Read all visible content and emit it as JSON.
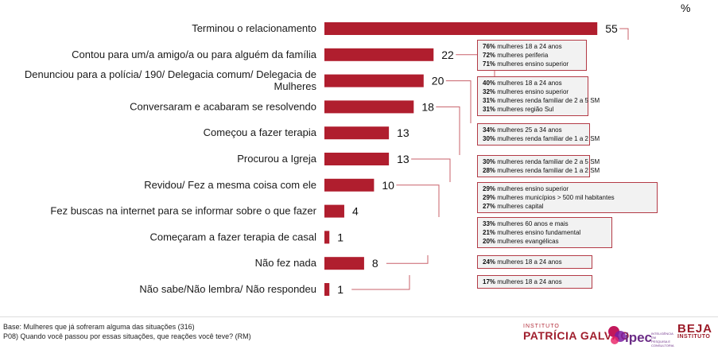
{
  "chart_data": {
    "type": "bar",
    "orientation": "horizontal",
    "unit_label": "%",
    "categories": [
      "Terminou o relacionamento",
      "Contou para um/a amigo/a ou para alguém da família",
      "Denunciou para a polícia/ 190/ Delegacia comum/ Delegacia de Mulheres",
      "Conversaram e acabaram se resolvendo",
      "Começou a fazer terapia",
      "Procurou a Igreja",
      "Revidou/ Fez a mesma coisa com ele",
      "Fez buscas na internet para se informar sobre o que fazer",
      "Começaram a fazer terapia de casal",
      "Não fez nada",
      "Não sabe/Não lembra/ Não respondeu"
    ],
    "category_lines": [
      [
        "Terminou o relacionamento"
      ],
      [
        "Contou para um/a amigo/a ou para alguém da família"
      ],
      [
        "Denunciou para a polícia/ 190/ Delegacia comum/ Delegacia de",
        "Mulheres"
      ],
      [
        "Conversaram e acabaram se resolvendo"
      ],
      [
        "Começou a fazer terapia"
      ],
      [
        "Procurou a Igreja"
      ],
      [
        "Revidou/ Fez a mesma coisa com ele"
      ],
      [
        "Fez buscas na internet para se informar sobre o que fazer"
      ],
      [
        "Começaram a fazer terapia de casal"
      ],
      [
        "Não fez nada"
      ],
      [
        "Não sabe/Não lembra/ Não respondeu"
      ]
    ],
    "values": [
      55,
      22,
      20,
      18,
      13,
      13,
      10,
      4,
      1,
      8,
      1
    ],
    "xlim": [
      0,
      55
    ],
    "bar_color": "#b01e2e",
    "annotations": [
      {
        "category_index": 0,
        "lines": [
          [
            "76%",
            "mulheres 18 a 24 anos"
          ],
          [
            "72%",
            "mulheres periferia"
          ],
          [
            "71%",
            "mulheres ensino superior"
          ]
        ]
      },
      {
        "category_index": 1,
        "lines": [
          [
            "40%",
            "mulheres 18 a 24 anos"
          ],
          [
            "32%",
            "mulheres ensino superior"
          ],
          [
            "31%",
            "mulheres renda familiar de 2 a 5 SM"
          ],
          [
            "31%",
            "mulheres região Sul"
          ]
        ]
      },
      {
        "category_index": 2,
        "lines": [
          [
            "34%",
            "mulheres 25 a 34 anos"
          ],
          [
            "30%",
            "mulheres renda familiar de 1 a 2 SM"
          ]
        ]
      },
      {
        "category_index": 3,
        "lines": [
          [
            "30%",
            "mulheres renda familiar de 2 a 5 SM"
          ],
          [
            "28%",
            "mulheres renda familiar de 1 a 2 SM"
          ]
        ]
      },
      {
        "category_index": 5,
        "lines": [
          [
            "29%",
            "mulheres ensino superior"
          ],
          [
            "29%",
            "mulheres municípios > 500 mil habitantes"
          ],
          [
            "27%",
            "mulheres capital"
          ]
        ]
      },
      {
        "category_index": 6,
        "lines": [
          [
            "33%",
            "mulheres 60 anos e mais"
          ],
          [
            "21%",
            "mulheres ensino fundamental"
          ],
          [
            "20%",
            "mulheres evangélicas"
          ]
        ]
      },
      {
        "category_index": 9,
        "lines": [
          [
            "24%",
            "mulheres 18 a 24 anos"
          ]
        ]
      },
      {
        "category_index": 10,
        "lines": [
          [
            "17%",
            "mulheres 18 a 24 anos"
          ]
        ]
      }
    ]
  },
  "footer": {
    "base": "Base: Mulheres que já sofreram alguma das situações  (316)",
    "question": "P08) Quando você passou por essas situações, que reações você teve? (RM)"
  },
  "logos": {
    "instituto_label": "INSTITUTO",
    "patricia_galvao": "PATRÍCIA GALVÃO",
    "ipec": "ipec",
    "ipec_sub": "INTELIGÊNCIA EM PESQUISA E CONSULTORIA",
    "beja": "BEJA",
    "beja_sub": "INSTITUTO"
  }
}
